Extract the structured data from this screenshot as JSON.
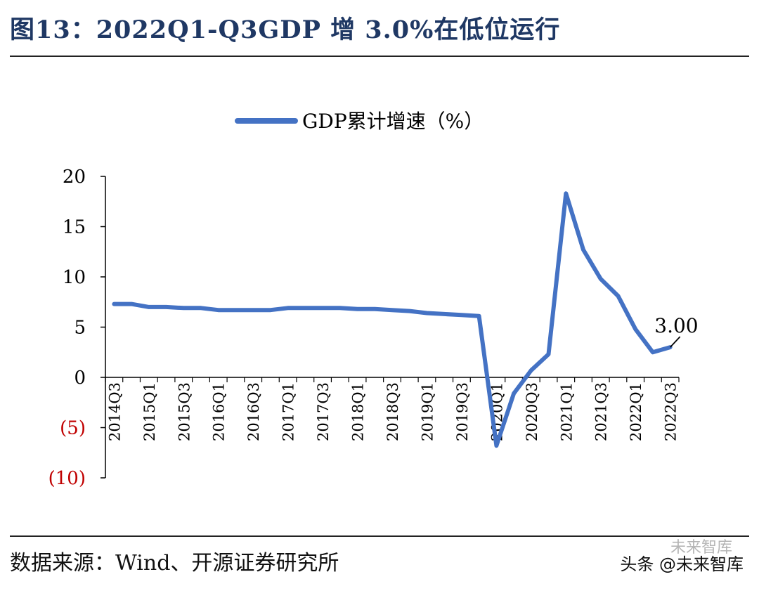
{
  "header": {
    "title": "图13：2022Q1-Q3GDP 增 3.0%在低位运行"
  },
  "footer": {
    "source": "数据来源：Wind、开源证券研究所",
    "watermark": "头条 @未来智库",
    "watermark_ghost": "未来智库"
  },
  "colors": {
    "line": "#4472c4",
    "title": "#1f3864",
    "negative_tick": "#c00000"
  },
  "chart_data": {
    "type": "line",
    "title": "",
    "legend": [
      "GDP累计增速（%）"
    ],
    "legend_position": "top-center",
    "xlabel": "",
    "ylabel": "",
    "ylim": [
      -10,
      20
    ],
    "yticks": [
      20,
      15,
      10,
      5,
      0,
      -5,
      -10
    ],
    "ytick_labels": [
      "20",
      "15",
      "10",
      "5",
      "0",
      "(5)",
      "(10)"
    ],
    "x": [
      "2014Q3",
      "2014Q4",
      "2015Q1",
      "2015Q2",
      "2015Q3",
      "2015Q4",
      "2016Q1",
      "2016Q2",
      "2016Q3",
      "2016Q4",
      "2017Q1",
      "2017Q2",
      "2017Q3",
      "2017Q4",
      "2018Q1",
      "2018Q2",
      "2018Q3",
      "2018Q4",
      "2019Q1",
      "2019Q2",
      "2019Q3",
      "2019Q4",
      "2020Q1",
      "2020Q2",
      "2020Q3",
      "2020Q4",
      "2021Q1",
      "2021Q2",
      "2021Q3",
      "2021Q4",
      "2022Q1",
      "2022Q2",
      "2022Q3"
    ],
    "x_tick_labels": [
      "2014Q3",
      "2015Q1",
      "2015Q3",
      "2016Q1",
      "2016Q3",
      "2017Q1",
      "2017Q3",
      "2018Q1",
      "2018Q3",
      "2019Q1",
      "2019Q3",
      "2020Q1",
      "2020Q3",
      "2021Q1",
      "2021Q3",
      "2022Q1",
      "2022Q3"
    ],
    "series": [
      {
        "name": "GDP累计增速（%）",
        "values": [
          7.3,
          7.3,
          7.0,
          7.0,
          6.9,
          6.9,
          6.7,
          6.7,
          6.7,
          6.7,
          6.9,
          6.9,
          6.9,
          6.9,
          6.8,
          6.8,
          6.7,
          6.6,
          6.4,
          6.3,
          6.2,
          6.1,
          -6.8,
          -1.6,
          0.7,
          2.3,
          18.3,
          12.7,
          9.8,
          8.1,
          4.8,
          2.5,
          3.0
        ]
      }
    ],
    "annotations": [
      {
        "label": "3.00",
        "x": "2022Q3",
        "value": 3.0
      }
    ]
  }
}
